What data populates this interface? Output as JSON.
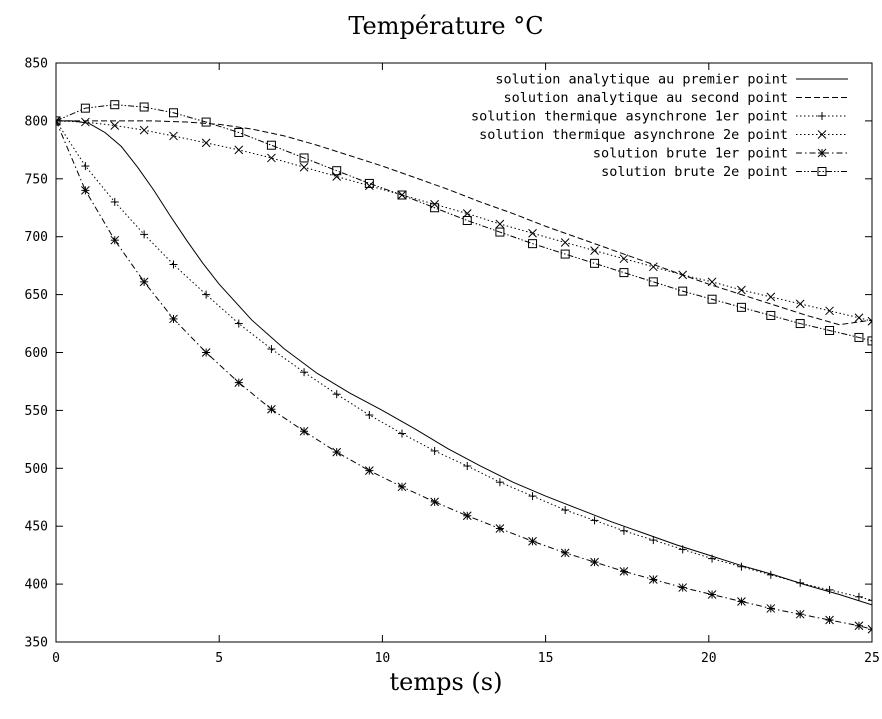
{
  "chart_data": {
    "type": "line",
    "title": "Température °C",
    "xlabel": "temps (s)",
    "ylabel": "",
    "xlim": [
      0,
      25
    ],
    "ylim": [
      350,
      850
    ],
    "xticks": [
      0,
      5,
      10,
      15,
      20,
      25
    ],
    "yticks": [
      350,
      400,
      450,
      500,
      550,
      600,
      650,
      700,
      750,
      800,
      850
    ],
    "grid": false,
    "legend_position": "top-right",
    "series": [
      {
        "name": "solution analytique au premier point",
        "style": "solid",
        "marker": "none",
        "x": [
          0,
          0.5,
          1.0,
          1.5,
          2.0,
          2.5,
          3.0,
          3.5,
          4.0,
          4.5,
          5.0,
          6.0,
          7.0,
          8.0,
          9.0,
          10.0,
          11.0,
          12.0,
          13.0,
          14.0,
          15.0,
          16.0,
          17.0,
          18.0,
          19.0,
          20.0,
          21.0,
          22.0,
          23.0,
          24.0,
          25.0
        ],
        "y": [
          800,
          800,
          798,
          790,
          778,
          760,
          740,
          718,
          697,
          677,
          659,
          628,
          603,
          582,
          565,
          550,
          534,
          517,
          502,
          488,
          476,
          465,
          454,
          444,
          434,
          425,
          416,
          408,
          399,
          391,
          382
        ]
      },
      {
        "name": "solution analytique au second point",
        "style": "dashed",
        "marker": "none",
        "x": [
          0,
          1,
          2,
          3,
          4,
          5,
          6,
          7,
          8,
          9,
          10,
          11,
          12,
          13,
          14,
          15,
          16,
          17,
          18,
          19,
          20,
          21,
          22,
          23,
          24,
          25
        ],
        "y": [
          800,
          800,
          800,
          800,
          799,
          797,
          793,
          787,
          779,
          770,
          761,
          751,
          741,
          730,
          720,
          709,
          699,
          689,
          679,
          669,
          659,
          650,
          641,
          632,
          624,
          628
        ]
      },
      {
        "name": "solution thermique asynchrone 1er point",
        "style": "dotted",
        "marker": "plus",
        "x": [
          0,
          0.9,
          1.8,
          2.7,
          3.6,
          4.6,
          5.6,
          6.6,
          7.6,
          8.6,
          9.6,
          10.6,
          11.6,
          12.6,
          13.6,
          14.6,
          15.6,
          16.5,
          17.4,
          18.3,
          19.2,
          20.1,
          21.0,
          21.9,
          22.8,
          23.7,
          24.6,
          25.0
        ],
        "y": [
          800,
          761,
          730,
          702,
          676,
          650,
          625,
          603,
          583,
          564,
          546,
          530,
          515,
          502,
          488,
          476,
          464,
          455,
          446,
          438,
          430,
          422,
          415,
          408,
          401,
          395,
          389,
          386
        ]
      },
      {
        "name": "solution thermique asynchrone 2e point",
        "style": "dotted",
        "marker": "cross",
        "x": [
          0,
          0.9,
          1.8,
          2.7,
          3.6,
          4.6,
          5.6,
          6.6,
          7.6,
          8.6,
          9.6,
          10.6,
          11.6,
          12.6,
          13.6,
          14.6,
          15.6,
          16.5,
          17.4,
          18.3,
          19.2,
          20.1,
          21.0,
          21.9,
          22.8,
          23.7,
          24.6,
          25.0
        ],
        "y": [
          800,
          799,
          796,
          792,
          787,
          781,
          775,
          768,
          760,
          752,
          744,
          736,
          728,
          720,
          711,
          703,
          695,
          688,
          681,
          674,
          667,
          661,
          654,
          648,
          642,
          636,
          630,
          627
        ]
      },
      {
        "name": "solution brute 1er point",
        "style": "dashdot",
        "marker": "star",
        "x": [
          0,
          0.9,
          1.8,
          2.7,
          3.6,
          4.6,
          5.6,
          6.6,
          7.6,
          8.6,
          9.6,
          10.6,
          11.6,
          12.6,
          13.6,
          14.6,
          15.6,
          16.5,
          17.4,
          18.3,
          19.2,
          20.1,
          21.0,
          21.9,
          22.8,
          23.7,
          24.6,
          25.0
        ],
        "y": [
          800,
          740,
          697,
          661,
          629,
          600,
          574,
          551,
          532,
          514,
          498,
          484,
          471,
          459,
          448,
          437,
          427,
          419,
          411,
          404,
          397,
          391,
          385,
          379,
          374,
          369,
          364,
          361
        ]
      },
      {
        "name": "solution brute 2e point",
        "style": "dashdotdot",
        "marker": "square",
        "x": [
          0,
          0.9,
          1.8,
          2.7,
          3.6,
          4.6,
          5.6,
          6.6,
          7.6,
          8.6,
          9.6,
          10.6,
          11.6,
          12.6,
          13.6,
          14.6,
          15.6,
          16.5,
          17.4,
          18.3,
          19.2,
          20.1,
          21.0,
          21.9,
          22.8,
          23.7,
          24.6,
          25.0
        ],
        "y": [
          800,
          811,
          814,
          812,
          807,
          799,
          790,
          779,
          768,
          757,
          746,
          736,
          725,
          714,
          704,
          694,
          685,
          677,
          669,
          661,
          653,
          646,
          639,
          632,
          625,
          619,
          613,
          610
        ]
      }
    ]
  }
}
